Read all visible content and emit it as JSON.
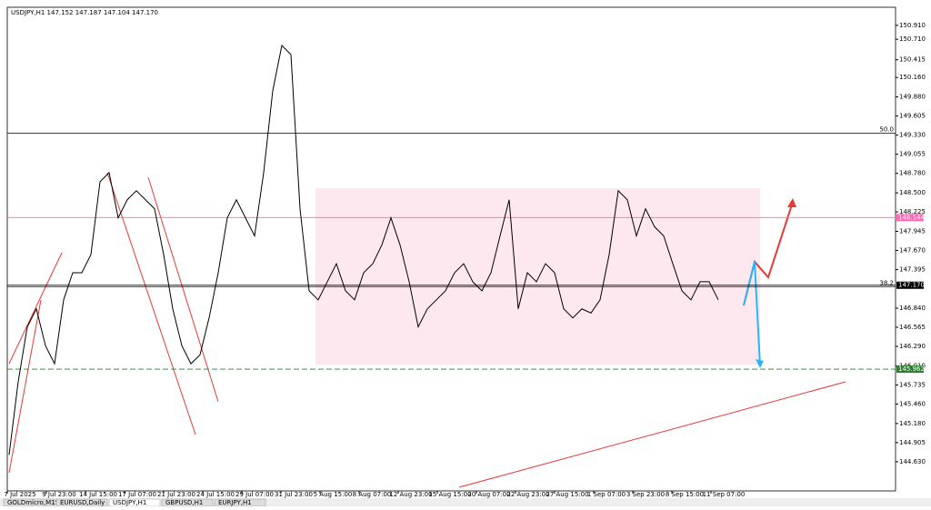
{
  "header": "USDJPY,H1  147.152 147.187 147.104 147.170",
  "chart_data": {
    "type": "line",
    "color": "#000000",
    "ylim": [
      144.21,
      151.17
    ],
    "yticks": [
      {
        "value": 150.91,
        "label": "150.910"
      },
      {
        "value": 150.71,
        "label": "150.710"
      },
      150.415,
      {
        "value": 150.16,
        "label": "150.160"
      },
      {
        "value": 149.88,
        "label": "149.880"
      },
      149.605,
      {
        "value": 149.33,
        "label": "149.330"
      },
      149.055,
      {
        "value": 148.78,
        "label": "148.780"
      },
      {
        "value": 148.5,
        "label": "148.500"
      },
      148.225,
      147.945,
      {
        "value": 147.67,
        "label": "147.670"
      },
      147.395,
      {
        "value": 146.84,
        "label": "146.840"
      },
      146.565,
      {
        "value": 146.29,
        "label": "146.290"
      },
      {
        "value": 146.01,
        "label": "146.010"
      },
      145.735,
      {
        "value": 145.46,
        "label": "145.460"
      },
      {
        "value": 145.18,
        "label": "145.180"
      },
      144.905,
      {
        "value": 144.63,
        "label": "144.630"
      }
    ],
    "xtick_labels": [
      "7 Jul 2025",
      "9 Jul 23:00",
      "14 Jul 15:00",
      "17 Jul 07:00",
      "21 Jul 23:00",
      "24 Jul 15:00",
      "29 Jul 07:00",
      "31 Jul 23:00",
      "5 Aug 15:00",
      "8 Aug 07:00",
      "12 Aug 23:00",
      "15 Aug 15:00",
      "20 Aug 07:00",
      "22 Aug 23:00",
      "27 Aug 15:00",
      "1 Sep 07:00",
      "3 Sep 23:00",
      "8 Sep 15:00",
      "11 Sep 07:00"
    ],
    "values": [
      144.73,
      145.78,
      146.57,
      146.83,
      146.3,
      146.04,
      146.96,
      147.35,
      147.35,
      147.61,
      148.66,
      148.79,
      148.14,
      148.4,
      148.53,
      148.4,
      148.27,
      147.61,
      146.83,
      146.3,
      146.04,
      146.17,
      146.7,
      147.35,
      148.14,
      148.4,
      148.14,
      147.88,
      148.79,
      149.97,
      150.62,
      150.49,
      148.27,
      147.09,
      146.96,
      147.22,
      147.48,
      147.09,
      146.96,
      147.35,
      147.48,
      147.75,
      148.14,
      147.75,
      147.22,
      146.57,
      146.83,
      146.96,
      147.09,
      147.35,
      147.48,
      147.22,
      147.09,
      147.35,
      147.88,
      148.4,
      146.83,
      147.35,
      147.22,
      147.48,
      147.35,
      146.83,
      146.7,
      146.83,
      146.77,
      146.96,
      147.61,
      148.53,
      148.4,
      147.88,
      148.27,
      148.01,
      147.88,
      147.48,
      147.09,
      146.96,
      147.22,
      147.22,
      146.96
    ],
    "levels": [
      {
        "name": "50.0",
        "price": 149.36,
        "color": "#000000"
      },
      {
        "name": "38.2",
        "price": 147.15,
        "color": "#000000"
      }
    ],
    "price_tags": [
      {
        "value": 148.144,
        "color": "#ff69b4"
      },
      {
        "value": 147.17,
        "label": "147.170",
        "color": "#000000"
      },
      {
        "value": 145.962,
        "color": "#2e7d32"
      }
    ]
  },
  "tabs": [
    "GOLDmicro,M15",
    "EURUSD,Daily",
    "USDJPY,H1",
    "GBPUSD,H1",
    "EURJPY,H1"
  ]
}
